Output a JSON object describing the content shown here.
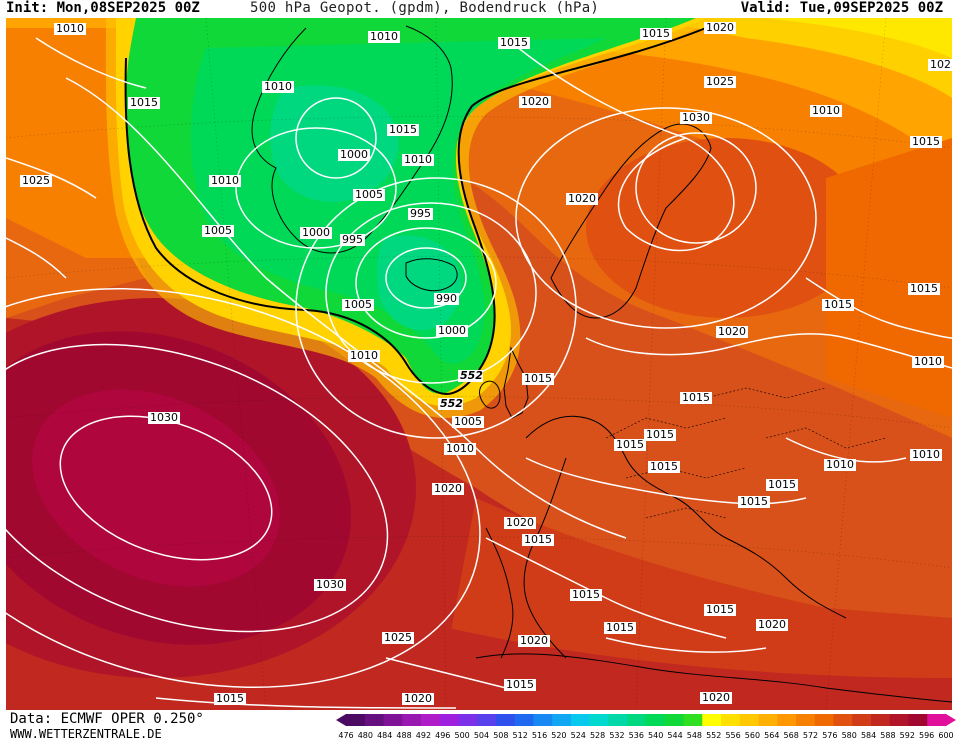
{
  "header": {
    "init": "Init: Mon,08SEP2025 00Z",
    "title": "500 hPa Geopot. (gpdm), Bodendruck (hPa)",
    "valid": "Valid: Tue,09SEP2025 00Z"
  },
  "footer": {
    "data_source": "Data: ECMWF OPER 0.250°",
    "website": "WWW.WETTERZENTRALE.DE"
  },
  "legend": {
    "values": [
      "476",
      "480",
      "484",
      "488",
      "492",
      "496",
      "500",
      "504",
      "508",
      "512",
      "516",
      "520",
      "524",
      "528",
      "532",
      "536",
      "540",
      "544",
      "548",
      "552",
      "556",
      "560",
      "564",
      "568",
      "572",
      "576",
      "580",
      "584",
      "588",
      "592",
      "596",
      "600"
    ],
    "colors": [
      "#4b0b63",
      "#64107e",
      "#7e1397",
      "#9818b0",
      "#b01cc8",
      "#a020e0",
      "#7c30e8",
      "#5840ec",
      "#3050ee",
      "#2068f0",
      "#1a88f2",
      "#10a8f2",
      "#08c8ee",
      "#00d8d0",
      "#00d8a8",
      "#00d880",
      "#00d858",
      "#10d838",
      "#30e020",
      "#ffff00",
      "#ffe000",
      "#ffc800",
      "#ffb000",
      "#ff9800",
      "#f88000",
      "#f06800",
      "#e05010",
      "#d03c18",
      "#c02820",
      "#b01428",
      "#a00830",
      "#e0109c"
    ]
  },
  "pressure_labels": [
    "1010",
    "1015",
    "1010",
    "1015",
    "1020",
    "1025",
    "1015",
    "1020",
    "1010",
    "1000",
    "1010",
    "1015",
    "1005",
    "1010",
    "1025",
    "1005",
    "995",
    "1000",
    "995",
    "1030",
    "1020",
    "1010",
    "1025",
    "1005",
    "990",
    "1015",
    "1015",
    "1000",
    "1010",
    "1020",
    "1010",
    "552",
    "1015",
    "552",
    "1030",
    "1015",
    "1015",
    "1005",
    "1015",
    "1010",
    "1020",
    "1015",
    "1010",
    "1010",
    "1015",
    "1015",
    "1015",
    "1020",
    "1030",
    "1020",
    "1015",
    "1015",
    "1025",
    "1020",
    "1015",
    "1015",
    "1020",
    "1015",
    "1020",
    "1015"
  ]
}
